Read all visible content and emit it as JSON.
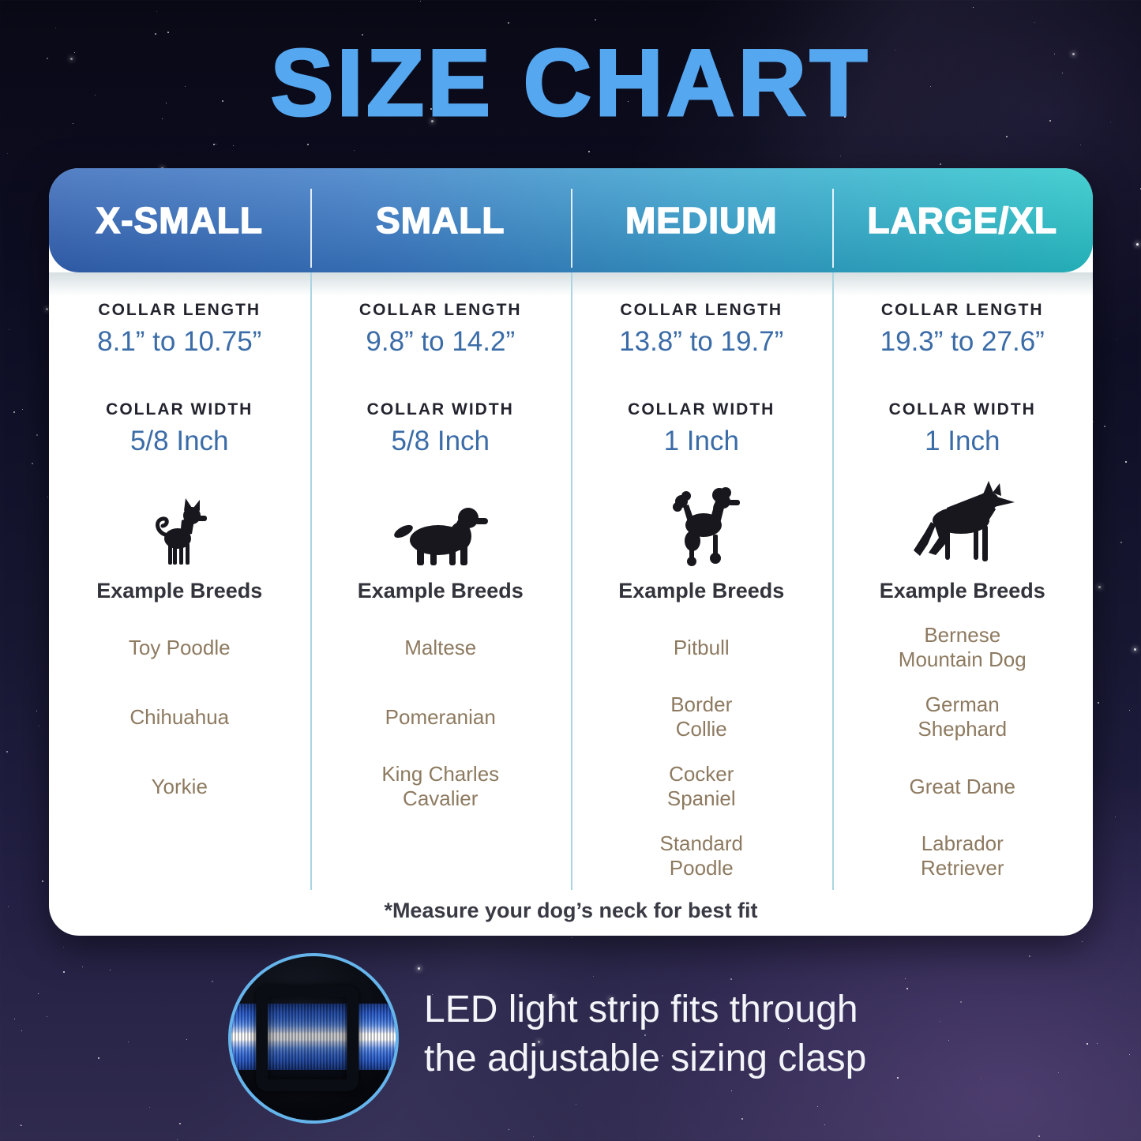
{
  "title": "SIZE CHART",
  "table": {
    "footnote": "*Measure your dog’s neck for best fit",
    "columns": [
      {
        "size": "X-SMALL",
        "collar_length_label": "COLLAR LENGTH",
        "collar_length": "8.1” to 10.75”",
        "collar_width_label": "COLLAR WIDTH",
        "collar_width": "5/8 Inch",
        "dog_icon": "chihuahua-icon",
        "breeds_title": "Example Breeds",
        "breeds": [
          "Toy Poodle",
          "Chihuahua",
          "Yorkie"
        ]
      },
      {
        "size": "SMALL",
        "collar_length_label": "COLLAR LENGTH",
        "collar_length": "9.8” to 14.2”",
        "collar_width_label": "COLLAR WIDTH",
        "collar_width": "5/8 Inch",
        "dog_icon": "cavalier-spaniel-icon",
        "breeds_title": "Example Breeds",
        "breeds": [
          "Maltese",
          "Pomeranian",
          "King Charles\nCavalier"
        ]
      },
      {
        "size": "MEDIUM",
        "collar_length_label": "COLLAR LENGTH",
        "collar_length": "13.8” to 19.7”",
        "collar_width_label": "COLLAR WIDTH",
        "collar_width": "1 Inch",
        "dog_icon": "poodle-icon",
        "breeds_title": "Example Breeds",
        "breeds": [
          "Pitbull",
          "Border\nCollie",
          "Cocker\nSpaniel",
          "Standard\nPoodle"
        ]
      },
      {
        "size": "LARGE/XL",
        "collar_length_label": "COLLAR LENGTH",
        "collar_length": "19.3” to 27.6”",
        "collar_width_label": "COLLAR WIDTH",
        "collar_width": "1 Inch",
        "dog_icon": "german-shepherd-icon",
        "breeds_title": "Example Breeds",
        "breeds": [
          "Bernese\nMountain Dog",
          "German\nShephard",
          "Great Dane",
          "Labrador\nRetriever"
        ]
      }
    ]
  },
  "callout": {
    "line1": "LED light strip fits through",
    "line2": "the adjustable sizing clasp",
    "image": "collar-clasp-photo"
  },
  "colors": {
    "title_blue": "#55a7f0",
    "header_gradient_teal": "#25c7c9",
    "header_gradient_blue": "#3363b6",
    "value_blue": "#3b6ca7",
    "breed_brown": "#8d7a60",
    "divider_blue": "#a9d5e2",
    "circle_ring_blue": "#65b5ec",
    "background_navy": "#0f0f26"
  },
  "chart_data": {
    "type": "table",
    "title": "SIZE CHART",
    "columns": [
      "X-SMALL",
      "SMALL",
      "MEDIUM",
      "LARGE/XL"
    ],
    "rows": [
      {
        "label": "Collar Length",
        "values": [
          "8.1” to 10.75”",
          "9.8” to 14.2”",
          "13.8” to 19.7”",
          "19.3” to 27.6”"
        ]
      },
      {
        "label": "Collar Width",
        "values": [
          "5/8 Inch",
          "5/8 Inch",
          "1 Inch",
          "1 Inch"
        ]
      },
      {
        "label": "Example Breeds",
        "values": [
          [
            "Toy Poodle",
            "Chihuahua",
            "Yorkie"
          ],
          [
            "Maltese",
            "Pomeranian",
            "King Charles Cavalier"
          ],
          [
            "Pitbull",
            "Border Collie",
            "Cocker Spaniel",
            "Standard Poodle"
          ],
          [
            "Bernese Mountain Dog",
            "German Shephard",
            "Great Dane",
            "Labrador Retriever"
          ]
        ]
      }
    ],
    "footnote": "*Measure your dog’s neck for best fit"
  }
}
